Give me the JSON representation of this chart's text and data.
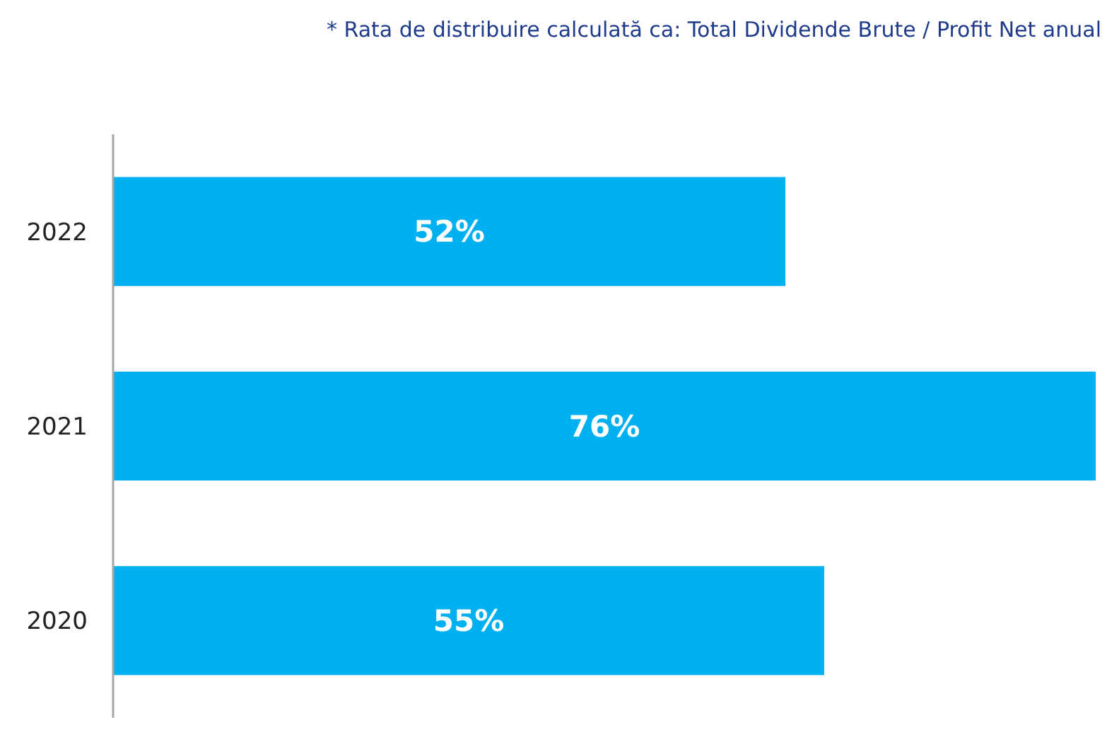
{
  "chart_data": {
    "type": "bar",
    "orientation": "horizontal",
    "annotations": [
      "* Rata de distribuire calculată ca:  Total Dividende Brute / Profit Net anual"
    ],
    "categories": [
      "2022",
      "2021",
      "2020"
    ],
    "values": [
      52,
      76,
      55
    ],
    "value_labels": [
      "52%",
      "76%",
      "55%"
    ],
    "color": "#00b0f0"
  }
}
